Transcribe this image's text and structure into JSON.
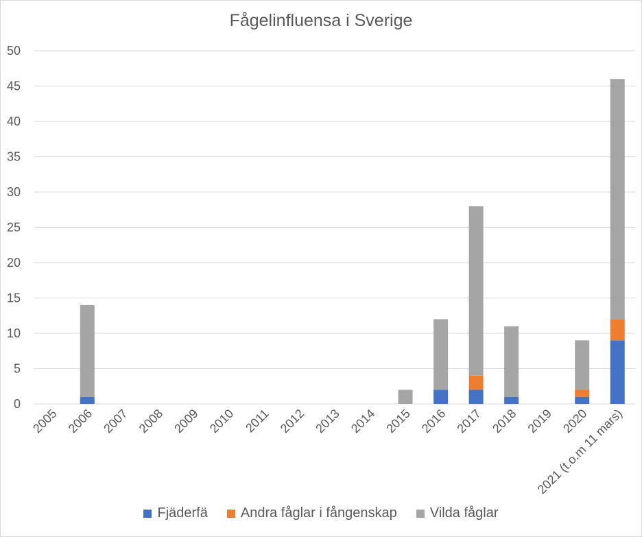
{
  "chart_data": {
    "type": "bar",
    "stacked": true,
    "title": "Fågelinfluensa i Sverige",
    "categories": [
      "2005",
      "2006",
      "2007",
      "2008",
      "2009",
      "2010",
      "2011",
      "2012",
      "2013",
      "2014",
      "2015",
      "2016",
      "2017",
      "2018",
      "2019",
      "2020",
      "2021 (t.o.m 11 mars)"
    ],
    "series": [
      {
        "name": "Fjäderfä",
        "color": "#4472C4",
        "values": [
          0,
          1,
          0,
          0,
          0,
          0,
          0,
          0,
          0,
          0,
          0,
          2,
          2,
          1,
          0,
          1,
          9
        ]
      },
      {
        "name": "Andra fåglar i fångenskap",
        "color": "#ED7D31",
        "values": [
          0,
          0,
          0,
          0,
          0,
          0,
          0,
          0,
          0,
          0,
          0,
          0,
          2,
          0,
          0,
          1,
          3
        ]
      },
      {
        "name": "Vilda fåglar",
        "color": "#A5A5A5",
        "values": [
          0,
          13,
          0,
          0,
          0,
          0,
          0,
          0,
          0,
          0,
          2,
          10,
          24,
          10,
          0,
          7,
          34
        ]
      }
    ],
    "ylim": [
      0,
      50
    ],
    "yticks": [
      0,
      5,
      10,
      15,
      20,
      25,
      30,
      35,
      40,
      45,
      50
    ],
    "grid": true,
    "legend_position": "bottom"
  }
}
